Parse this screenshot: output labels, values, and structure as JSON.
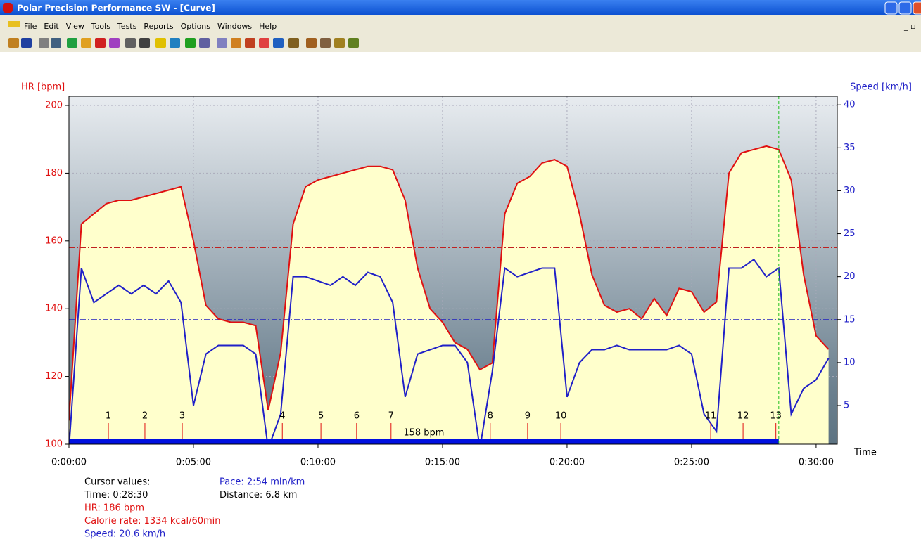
{
  "window": {
    "title": "Polar Precision Performance SW - [Curve]",
    "menu": [
      "File",
      "Edit",
      "View",
      "Tools",
      "Tests",
      "Reports",
      "Options",
      "Windows",
      "Help"
    ]
  },
  "chart_data": {
    "type": "line",
    "y_label": "HR [bpm]",
    "y2_label": "Speed [km/h]",
    "x_label": "Time",
    "x": [
      0,
      30,
      60,
      90,
      120,
      150,
      180,
      210,
      240,
      270,
      300,
      330,
      360,
      390,
      420,
      450,
      480,
      510,
      540,
      570,
      600,
      630,
      660,
      690,
      720,
      750,
      780,
      810,
      840,
      870,
      900,
      930,
      960,
      990,
      1020,
      1050,
      1080,
      1110,
      1140,
      1170,
      1200,
      1230,
      1260,
      1290,
      1320,
      1350,
      1380,
      1410,
      1440,
      1470,
      1500,
      1530,
      1560,
      1590,
      1620,
      1650,
      1680,
      1710,
      1740,
      1770,
      1800,
      1830
    ],
    "series": [
      {
        "color": "#e01010",
        "fill": "#ffffcc",
        "values": [
          107,
          165,
          168,
          171,
          172,
          172,
          173,
          174,
          175,
          176,
          160,
          141,
          137,
          136,
          136,
          135,
          110,
          127,
          165,
          176,
          178,
          179,
          180,
          181,
          182,
          182,
          181,
          172,
          152,
          140,
          136,
          130,
          128,
          122,
          124,
          168,
          177,
          179,
          183,
          184,
          182,
          168,
          150,
          141,
          139,
          140,
          137,
          143,
          138,
          146,
          145,
          139,
          142,
          180,
          186,
          187,
          188,
          187,
          178,
          150,
          132,
          128
        ]
      },
      {
        "color": "#2020c8",
        "axis": "y2",
        "values": [
          0,
          21,
          17,
          18,
          19,
          18,
          19,
          18,
          19.5,
          17,
          5,
          11,
          12,
          12,
          12,
          11,
          0,
          4,
          20,
          20,
          19.5,
          19,
          20,
          19,
          20.5,
          20,
          17,
          6,
          11,
          11.5,
          12,
          12,
          10,
          0,
          9,
          21,
          20,
          20.5,
          21,
          21,
          6,
          10,
          11.5,
          11.5,
          12,
          11.5,
          11.5,
          11.5,
          11.5,
          12,
          11,
          4,
          2,
          21,
          21,
          22,
          20,
          21,
          4,
          7,
          8,
          10.5
        ]
      }
    ],
    "xlim": [
      0,
      1851
    ],
    "xticks": [
      {
        "value": 0,
        "label": "0:00:00"
      },
      {
        "value": 300,
        "label": "0:05:00"
      },
      {
        "value": 600,
        "label": "0:10:00"
      },
      {
        "value": 900,
        "label": "0:15:00"
      },
      {
        "value": 1200,
        "label": "0:20:00"
      },
      {
        "value": 1500,
        "label": "0:25:00"
      },
      {
        "value": 1800,
        "label": "0:30:00"
      }
    ],
    "ylim": [
      100,
      202.7
    ],
    "yticks": [
      100,
      120,
      140,
      160,
      180,
      200
    ],
    "y2lim": [
      0.5,
      41
    ],
    "y2ticks": [
      5,
      10,
      15,
      20,
      25,
      30,
      35,
      40
    ],
    "grid": true,
    "reference_lines": [
      {
        "axis": "y",
        "value": 158,
        "color": "#c02020"
      },
      {
        "axis": "y2",
        "value": 15,
        "color": "#2020c0"
      }
    ],
    "laps": {
      "labels": [
        "1",
        "2",
        "3",
        "4",
        "5",
        "6",
        "7",
        "8",
        "9",
        "10",
        "11",
        "12",
        "13"
      ],
      "x": [
        95,
        183,
        273,
        514,
        607,
        693,
        776,
        1015,
        1105,
        1185,
        1546,
        1624,
        1703
      ]
    },
    "zone_label": "158 bpm",
    "cursor_x": 1710
  },
  "cursor_values": {
    "left": [
      {
        "text": "Cursor values:",
        "color": "#000000"
      },
      {
        "text": "Time: 0:28:30",
        "color": "#000000"
      },
      {
        "text": "HR: 186 bpm",
        "color": "#e01010"
      },
      {
        "text": "Calorie rate: 1334 kcal/60min",
        "color": "#e01010"
      },
      {
        "text": "Speed: 20.6 km/h",
        "color": "#2020c8"
      }
    ],
    "right": [
      {
        "text": "Pace: 2:54 min/km",
        "color": "#2020c8"
      },
      {
        "text": "Distance: 6.8 km",
        "color": "#000000"
      }
    ]
  }
}
